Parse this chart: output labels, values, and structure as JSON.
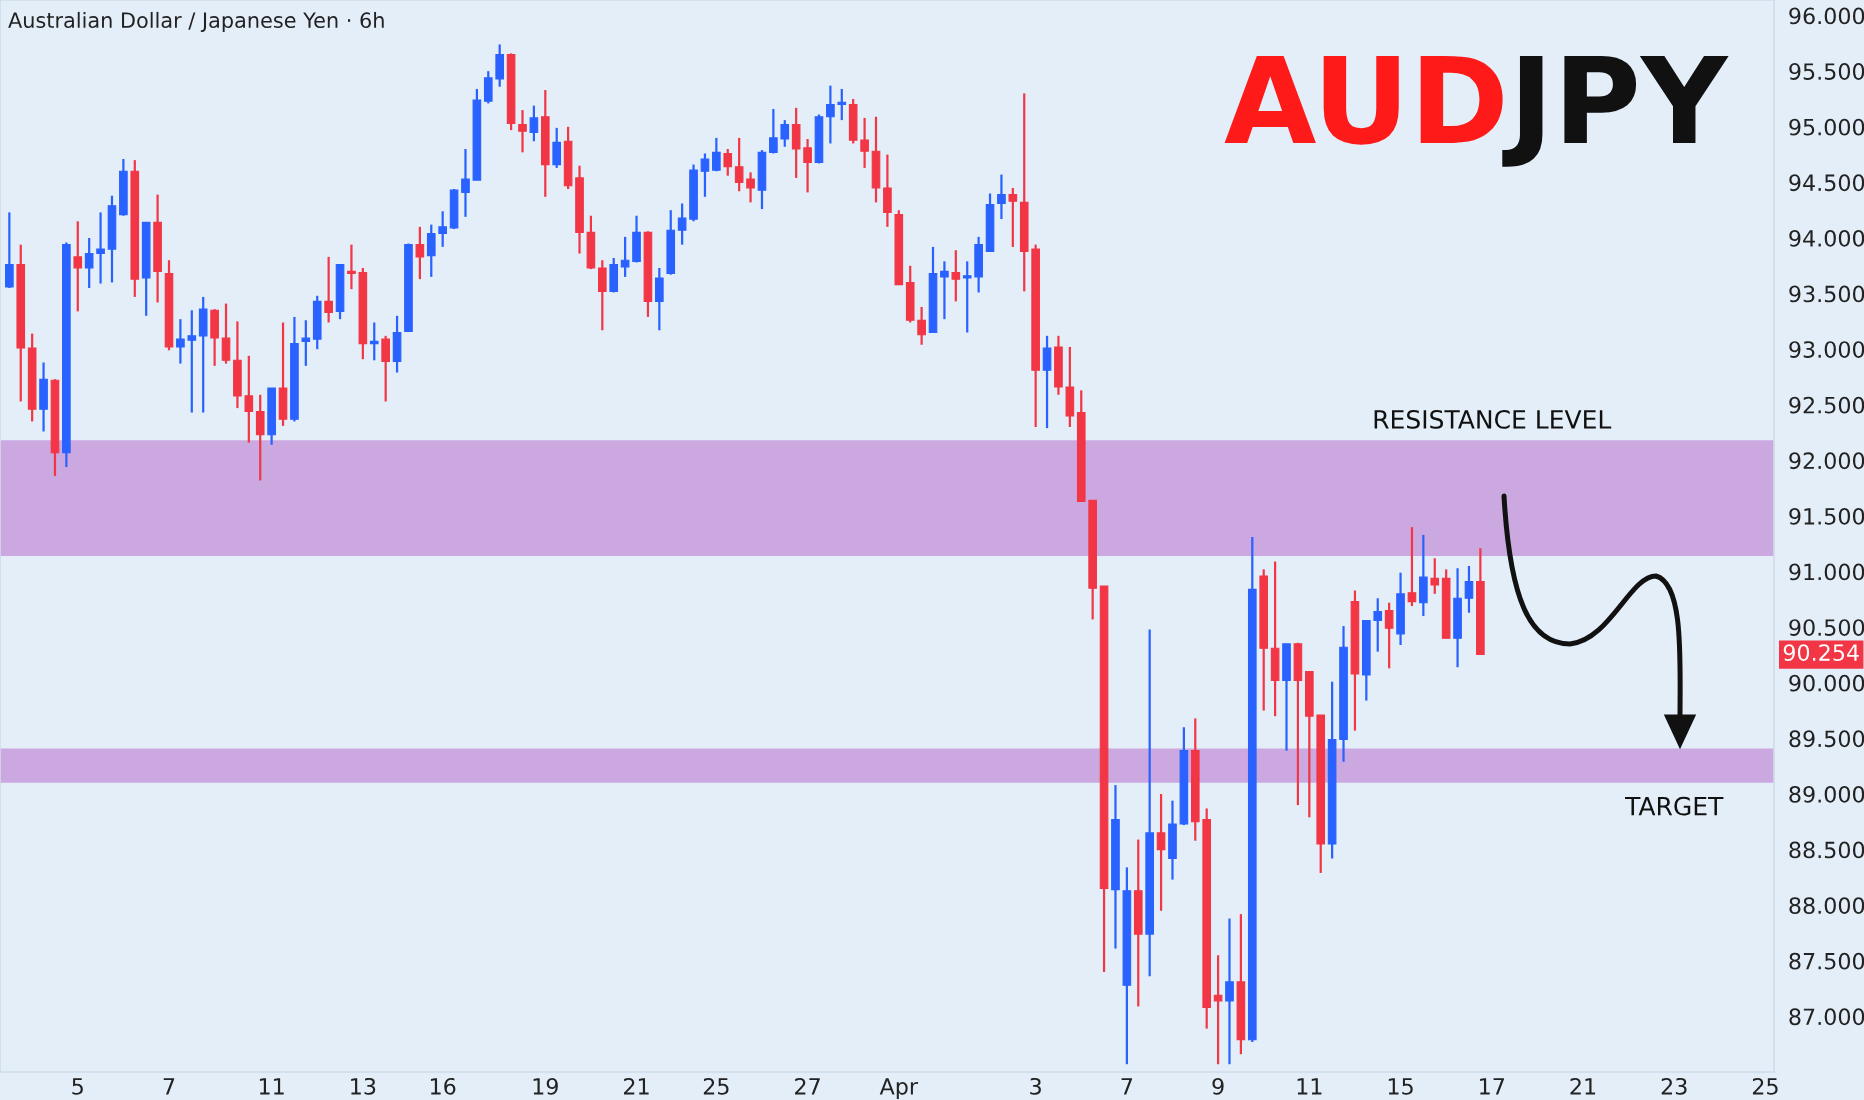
{
  "chart_data": {
    "type": "candlestick",
    "title": "AUDJPY",
    "subtitle": "Australian Dollar / Japanese Yen · 6h",
    "categories": [
      null,
      null,
      null,
      null,
      null,
      null,
      "5",
      null,
      null,
      null,
      null,
      null,
      null,
      null,
      "7",
      null,
      null,
      null,
      null,
      null,
      null,
      null,
      null,
      "11",
      null,
      null,
      null,
      null,
      null,
      null,
      null,
      "13",
      null,
      null,
      null,
      null,
      null,
      null,
      "16",
      null,
      null,
      null,
      null,
      null,
      null,
      null,
      null,
      "19",
      null,
      null,
      null,
      null,
      null,
      null,
      null,
      "21",
      null,
      null,
      null,
      null,
      null,
      null,
      "25",
      null,
      null,
      null,
      null,
      null,
      null,
      null,
      "27",
      null,
      null,
      null,
      null,
      null,
      null,
      null,
      "Apr",
      null,
      null,
      null,
      null,
      null,
      null,
      null,
      null,
      null,
      null,
      null,
      "3",
      null,
      null,
      null,
      null,
      null,
      null,
      null,
      "7",
      null,
      null,
      null,
      null,
      null,
      null,
      null,
      "9",
      null,
      null,
      null,
      null,
      null,
      null,
      null,
      "11",
      null,
      null,
      null,
      null,
      null,
      null,
      null,
      "15",
      null,
      null,
      null,
      null,
      null,
      null,
      null,
      "17",
      null,
      null,
      null,
      null,
      null,
      null,
      null,
      "21",
      null,
      null,
      null,
      null,
      null,
      null,
      null,
      "23",
      null,
      null,
      null,
      null,
      null,
      null,
      null,
      "25"
    ],
    "ohlc": [
      [
        93.56,
        94.23,
        93.55,
        93.76
      ],
      [
        93.76,
        93.94,
        92.53,
        93.01
      ],
      [
        93.01,
        93.14,
        92.35,
        92.46
      ],
      [
        92.46,
        92.88,
        92.26,
        92.73
      ],
      [
        92.72,
        92.73,
        91.86,
        92.07
      ],
      [
        92.07,
        93.96,
        91.94,
        93.94
      ],
      [
        93.83,
        94.15,
        93.34,
        93.73
      ],
      [
        93.73,
        94.0,
        93.55,
        93.86
      ],
      [
        93.86,
        94.23,
        93.59,
        93.9
      ],
      [
        93.9,
        94.38,
        93.6,
        94.29
      ],
      [
        94.21,
        94.71,
        94.2,
        94.6
      ],
      [
        94.6,
        94.7,
        93.47,
        93.63
      ],
      [
        93.64,
        94.14,
        93.3,
        94.14
      ],
      [
        94.14,
        94.39,
        93.42,
        93.7
      ],
      [
        93.68,
        93.8,
        92.99,
        93.02
      ],
      [
        93.02,
        93.27,
        92.87,
        93.09
      ],
      [
        93.08,
        93.35,
        92.43,
        93.12
      ],
      [
        93.12,
        93.47,
        92.43,
        93.36
      ],
      [
        93.35,
        93.36,
        92.85,
        93.1
      ],
      [
        93.1,
        93.41,
        92.87,
        92.9
      ],
      [
        92.9,
        93.25,
        92.47,
        92.58
      ],
      [
        92.58,
        92.94,
        92.16,
        92.44
      ],
      [
        92.44,
        92.59,
        91.82,
        92.23
      ],
      [
        92.23,
        92.65,
        92.14,
        92.65
      ],
      [
        92.65,
        93.24,
        92.31,
        92.37
      ],
      [
        92.37,
        93.29,
        92.35,
        93.05
      ],
      [
        93.07,
        93.26,
        92.85,
        93.1
      ],
      [
        93.09,
        93.48,
        93.0,
        93.43
      ],
      [
        93.43,
        93.83,
        93.24,
        93.33
      ],
      [
        93.34,
        93.76,
        93.27,
        93.76
      ],
      [
        93.7,
        93.94,
        93.54,
        93.68
      ],
      [
        93.69,
        93.73,
        92.91,
        93.05
      ],
      [
        93.05,
        93.24,
        92.9,
        93.07
      ],
      [
        93.09,
        93.12,
        92.53,
        92.89
      ],
      [
        92.89,
        93.3,
        92.79,
        93.15
      ],
      [
        93.16,
        93.95,
        93.16,
        93.94
      ],
      [
        93.94,
        94.1,
        93.63,
        93.83
      ],
      [
        93.84,
        94.12,
        93.65,
        94.04
      ],
      [
        94.04,
        94.24,
        93.92,
        94.1
      ],
      [
        94.09,
        94.44,
        94.08,
        94.43
      ],
      [
        94.41,
        94.8,
        94.19,
        94.53
      ],
      [
        94.52,
        95.34,
        94.52,
        95.24
      ],
      [
        95.23,
        95.5,
        95.21,
        95.44
      ],
      [
        95.43,
        95.74,
        95.36,
        95.65
      ],
      [
        95.65,
        95.66,
        94.97,
        95.03
      ],
      [
        95.02,
        95.15,
        94.77,
        94.96
      ],
      [
        94.95,
        95.19,
        94.87,
        95.08
      ],
      [
        95.09,
        95.33,
        94.37,
        94.66
      ],
      [
        94.66,
        94.99,
        94.63,
        94.86
      ],
      [
        94.87,
        95.0,
        94.44,
        94.47
      ],
      [
        94.54,
        94.65,
        93.86,
        94.05
      ],
      [
        94.05,
        94.2,
        93.72,
        93.73
      ],
      [
        93.73,
        93.8,
        93.17,
        93.52
      ],
      [
        93.52,
        93.82,
        93.51,
        93.76
      ],
      [
        93.74,
        94.01,
        93.65,
        93.8
      ],
      [
        93.79,
        94.2,
        93.78,
        94.05
      ],
      [
        94.05,
        94.06,
        93.29,
        93.43
      ],
      [
        93.43,
        93.73,
        93.17,
        93.64
      ],
      [
        93.68,
        94.25,
        93.67,
        94.07
      ],
      [
        94.07,
        94.31,
        93.94,
        94.18
      ],
      [
        94.17,
        94.66,
        94.15,
        94.61
      ],
      [
        94.6,
        94.76,
        94.37,
        94.71
      ],
      [
        94.61,
        94.9,
        94.6,
        94.77
      ],
      [
        94.76,
        94.8,
        94.56,
        94.64
      ],
      [
        94.64,
        94.9,
        94.42,
        94.5
      ],
      [
        94.53,
        94.59,
        94.32,
        94.45
      ],
      [
        94.43,
        94.79,
        94.26,
        94.77
      ],
      [
        94.77,
        95.16,
        94.76,
        94.9
      ],
      [
        94.89,
        95.06,
        94.82,
        95.02
      ],
      [
        95.02,
        95.17,
        94.54,
        94.8
      ],
      [
        94.81,
        94.89,
        94.41,
        94.68
      ],
      [
        94.68,
        95.11,
        94.67,
        95.09
      ],
      [
        95.09,
        95.37,
        94.85,
        95.2
      ],
      [
        95.2,
        95.34,
        95.06,
        95.22
      ],
      [
        95.2,
        95.25,
        94.85,
        94.88
      ],
      [
        94.88,
        95.08,
        94.63,
        94.78
      ],
      [
        94.78,
        95.09,
        94.32,
        94.45
      ],
      [
        94.45,
        94.75,
        94.1,
        94.23
      ],
      [
        94.21,
        94.25,
        93.58,
        93.58
      ],
      [
        93.6,
        93.75,
        93.24,
        93.26
      ],
      [
        93.26,
        93.38,
        93.04,
        93.13
      ],
      [
        93.15,
        93.92,
        93.15,
        93.68
      ],
      [
        93.65,
        93.79,
        93.27,
        93.7
      ],
      [
        93.69,
        93.89,
        93.43,
        93.63
      ],
      [
        93.64,
        93.79,
        93.15,
        93.66
      ],
      [
        93.65,
        94.01,
        93.51,
        93.94
      ],
      [
        93.88,
        94.4,
        93.88,
        94.3
      ],
      [
        94.31,
        94.57,
        94.17,
        94.39
      ],
      [
        94.39,
        94.45,
        93.92,
        94.33
      ],
      [
        94.32,
        95.3,
        93.52,
        93.88
      ],
      [
        93.9,
        93.94,
        92.3,
        92.81
      ],
      [
        92.81,
        93.12,
        92.29,
        93.01
      ],
      [
        93.02,
        93.12,
        92.59,
        92.66
      ],
      [
        92.66,
        93.02,
        92.3,
        92.4
      ],
      [
        92.43,
        92.63,
        91.63,
        91.63
      ],
      [
        91.64,
        91.64,
        90.57,
        90.85
      ],
      [
        90.87,
        90.87,
        87.4,
        88.15
      ],
      [
        88.14,
        89.08,
        87.61,
        88.77
      ],
      [
        87.28,
        88.34,
        86.57,
        88.13
      ],
      [
        88.13,
        88.59,
        87.09,
        87.74
      ],
      [
        87.74,
        90.48,
        87.36,
        88.65
      ],
      [
        88.65,
        89.0,
        87.95,
        88.5
      ],
      [
        88.42,
        88.94,
        88.23,
        88.73
      ],
      [
        88.73,
        89.6,
        88.72,
        89.39
      ],
      [
        89.39,
        89.68,
        88.58,
        88.75
      ],
      [
        88.77,
        88.87,
        86.89,
        87.08
      ],
      [
        87.19,
        87.55,
        86.57,
        87.14
      ],
      [
        87.14,
        87.88,
        86.57,
        87.31
      ],
      [
        87.31,
        87.92,
        86.66,
        86.79
      ],
      [
        86.79,
        91.31,
        86.77,
        90.84
      ],
      [
        90.96,
        91.02,
        89.75,
        90.31
      ],
      [
        90.31,
        91.09,
        89.7,
        90.02
      ],
      [
        90.02,
        90.35,
        89.39,
        90.35
      ],
      [
        90.35,
        90.36,
        88.9,
        90.02
      ],
      [
        90.1,
        90.1,
        88.79,
        89.7
      ],
      [
        89.71,
        89.71,
        88.29,
        88.55
      ],
      [
        88.55,
        90.01,
        88.42,
        89.49
      ],
      [
        89.49,
        90.51,
        89.29,
        90.32
      ],
      [
        90.73,
        90.83,
        89.57,
        90.08
      ],
      [
        90.07,
        90.56,
        89.84,
        90.56
      ],
      [
        90.56,
        90.76,
        90.28,
        90.64
      ],
      [
        90.65,
        90.72,
        90.13,
        90.49
      ],
      [
        90.44,
        90.99,
        90.34,
        90.8
      ],
      [
        90.81,
        91.4,
        90.69,
        90.73
      ],
      [
        90.72,
        91.33,
        90.6,
        90.95
      ],
      [
        90.94,
        91.12,
        90.8,
        90.88
      ],
      [
        90.94,
        91.02,
        90.4,
        90.4
      ],
      [
        90.4,
        91.03,
        90.14,
        90.76
      ],
      [
        90.76,
        91.05,
        90.63,
        90.91
      ],
      [
        90.91,
        91.21,
        90.25,
        90.254
      ],
      null,
      null,
      null,
      null,
      null,
      null,
      null,
      null,
      null,
      null,
      null,
      null,
      null,
      null,
      null,
      null,
      null,
      null,
      null,
      null,
      null,
      null,
      null,
      null,
      null
    ],
    "colors": [
      "#2962ff",
      "#f23645",
      "#f23645",
      "#2962ff",
      "#f23645",
      "#2962ff",
      "#f23645",
      "#2962ff",
      "#2962ff",
      "#2962ff",
      "#2962ff",
      "#f23645",
      "#2962ff",
      "#f23645",
      "#f23645",
      "#2962ff",
      "#2962ff",
      "#2962ff",
      "#f23645",
      "#f23645",
      "#f23645",
      "#f23645",
      "#f23645",
      "#2962ff",
      "#f23645",
      "#2962ff",
      "#2962ff",
      "#2962ff",
      "#f23645",
      "#2962ff",
      "#f23645",
      "#f23645",
      "#2962ff",
      "#f23645",
      "#2962ff",
      "#2962ff",
      "#f23645",
      "#2962ff",
      "#2962ff",
      "#2962ff",
      "#2962ff",
      "#2962ff",
      "#2962ff",
      "#2962ff",
      "#f23645",
      "#f23645",
      "#2962ff",
      "#f23645",
      "#2962ff",
      "#f23645",
      "#f23645",
      "#f23645",
      "#f23645",
      "#2962ff",
      "#2962ff",
      "#2962ff",
      "#f23645",
      "#2962ff",
      "#2962ff",
      "#2962ff",
      "#2962ff",
      "#2962ff",
      "#2962ff",
      "#f23645",
      "#f23645",
      "#f23645",
      "#2962ff",
      "#2962ff",
      "#2962ff",
      "#f23645",
      "#f23645",
      "#2962ff",
      "#2962ff",
      "#2962ff",
      "#f23645",
      "#f23645",
      "#f23645",
      "#f23645",
      "#f23645",
      "#f23645",
      "#f23645",
      "#2962ff",
      "#2962ff",
      "#f23645",
      "#2962ff",
      "#2962ff",
      "#2962ff",
      "#2962ff",
      "#f23645",
      "#f23645",
      "#f23645",
      "#2962ff",
      "#f23645",
      "#f23645",
      "#f23645",
      "#f23645",
      "#f23645",
      "#2962ff",
      "#2962ff",
      "#f23645",
      "#2962ff",
      "#f23645",
      "#2962ff",
      "#2962ff",
      "#f23645",
      "#f23645",
      "#f23645",
      "#2962ff",
      "#f23645",
      "#2962ff",
      "#f23645",
      "#f23645",
      "#2962ff",
      "#f23645",
      "#f23645",
      "#f23645",
      "#2962ff",
      "#2962ff",
      "#f23645",
      "#2962ff",
      "#2962ff",
      "#f23645",
      "#2962ff",
      "#f23645",
      "#2962ff",
      "#f23645",
      "#f23645",
      "#2962ff",
      "#2962ff",
      "#f23645",
      null,
      null,
      null,
      null,
      null,
      null,
      null,
      null,
      null,
      null,
      null,
      null,
      null,
      null,
      null,
      null,
      null,
      null,
      null,
      null,
      null,
      null,
      null,
      null,
      null
    ],
    "ylim": [
      86.5,
      96.14
    ],
    "yticks": [
      {
        "value": 87,
        "label": "87.000"
      },
      {
        "value": 87.5,
        "label": "87.500"
      },
      {
        "value": 88,
        "label": "88.000"
      },
      {
        "value": 88.5,
        "label": "88.500"
      },
      {
        "value": 89,
        "label": "89.000"
      },
      {
        "value": 89.5,
        "label": "89.500"
      },
      {
        "value": 90,
        "label": "90.000"
      },
      {
        "value": 90.5,
        "label": "90.500"
      },
      {
        "value": 91,
        "label": "91.000"
      },
      {
        "value": 91.5,
        "label": "91.500"
      },
      {
        "value": 92,
        "label": "92.000"
      },
      {
        "value": 92.5,
        "label": "92.500"
      },
      {
        "value": 93,
        "label": "93.000"
      },
      {
        "value": 93.5,
        "label": "93.500"
      },
      {
        "value": 94,
        "label": "94.000"
      },
      {
        "value": 94.5,
        "label": "94.500"
      },
      {
        "value": 95,
        "label": "95.000"
      },
      {
        "value": 95.5,
        "label": "95.500"
      },
      {
        "value": 96,
        "label": "96.000"
      }
    ],
    "bands": [
      {
        "axis": "y",
        "from": 91.14,
        "to": 92.18,
        "label": "RESISTANCE LEVEL",
        "color": "#cba8e0"
      },
      {
        "axis": "y",
        "from": 89.1,
        "to": 89.41,
        "label": "TARGET",
        "color": "#cba8e0"
      }
    ],
    "annotations": [
      {
        "text": "90.254",
        "y": 90.254
      }
    ]
  }
}
